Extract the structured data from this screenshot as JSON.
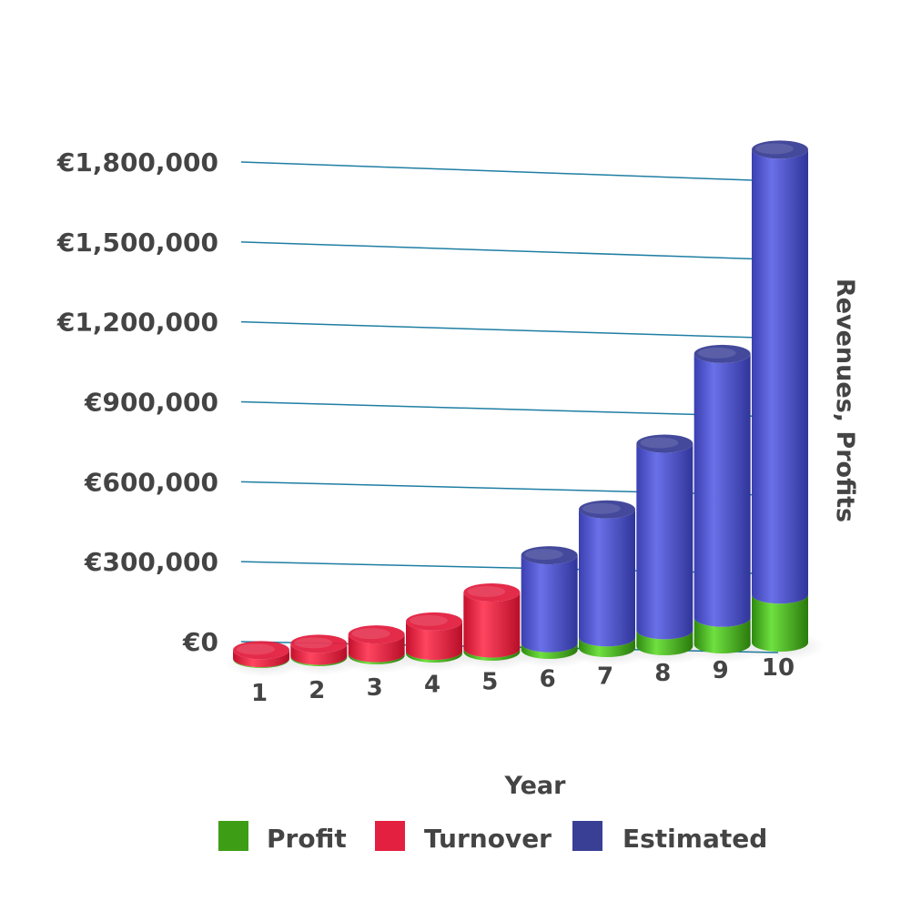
{
  "chart_data": {
    "type": "bar",
    "categories": [
      "1",
      "2",
      "3",
      "4",
      "5",
      "6",
      "7",
      "8",
      "9",
      "10"
    ],
    "series": [
      {
        "name": "Profit",
        "values": [
          3000,
          5000,
          8000,
          10000,
          12000,
          25000,
          40000,
          60000,
          100000,
          180000
        ]
      },
      {
        "name": "Turnover",
        "values": [
          30000,
          45000,
          70000,
          110000,
          210000,
          null,
          null,
          null,
          null,
          null
        ]
      },
      {
        "name": "Estimated",
        "values": [
          null,
          null,
          null,
          null,
          null,
          330000,
          480000,
          700000,
          990000,
          1670000
        ]
      }
    ],
    "xlabel": "Year",
    "ylabel": "Revenues, Profits",
    "ylim": [
      0,
      1800000
    ],
    "yticks": [
      0,
      300000,
      600000,
      900000,
      1200000,
      1500000,
      1800000
    ],
    "ytick_labels": [
      "€0",
      "€300,000",
      "€600,000",
      "€900,000",
      "€1,200,000",
      "€1,500,000",
      "€1,800,000"
    ],
    "grid": true,
    "legend_position": "bottom",
    "colors": {
      "Profit": "#3d9e16",
      "Turnover": "#e32040",
      "Estimated": "#3a3f96",
      "grid": "#1f7ea3"
    }
  }
}
